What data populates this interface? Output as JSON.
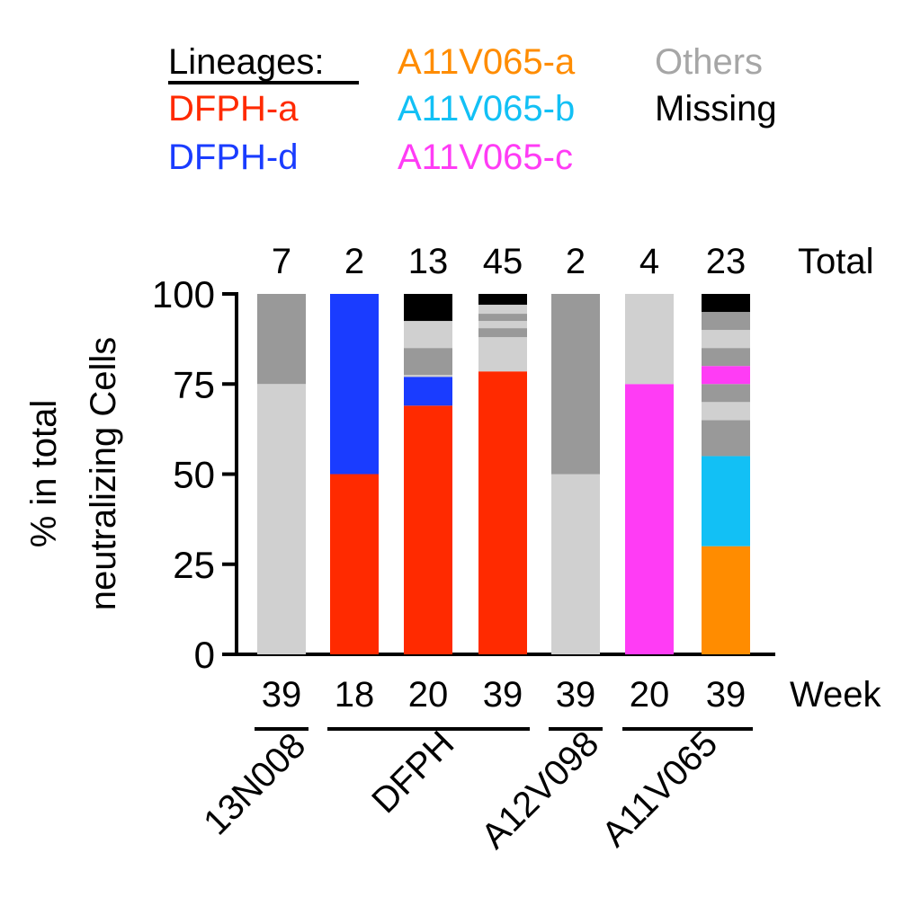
{
  "chart_data": {
    "type": "bar",
    "stacked": true,
    "ylabel": [
      "% in total",
      "neutralizing Cells"
    ],
    "ylim": [
      0,
      100
    ],
    "yticks": [
      0,
      25,
      50,
      75,
      100
    ],
    "legend": {
      "title": "Lineages:",
      "position": "top",
      "entries": [
        {
          "name": "DFPH-a",
          "color": "#ff2a00"
        },
        {
          "name": "DFPH-d",
          "color": "#1a3cff"
        },
        {
          "name": "A11V065-a",
          "color": "#ff8c00"
        },
        {
          "name": "A11V065-b",
          "color": "#12c0f5"
        },
        {
          "name": "A11V065-c",
          "color": "#ff3cf5"
        },
        {
          "name": "Others",
          "color": "#a6a6a6"
        },
        {
          "name": "Missing",
          "color": "#000000"
        }
      ]
    },
    "total_label": "Total",
    "week_label": "Week",
    "colors": {
      "light_gray": "#d0d0d0",
      "dark_gray": "#999999",
      "missing": "#000000"
    },
    "bars": [
      {
        "week": "39",
        "total": "7",
        "group": "13N008",
        "segments": [
          {
            "lineage": "Others",
            "shade": "light",
            "value": 75
          },
          {
            "lineage": "Others",
            "shade": "dark",
            "value": 25
          }
        ]
      },
      {
        "week": "18",
        "total": "2",
        "group": "DFPH",
        "segments": [
          {
            "lineage": "DFPH-a",
            "value": 50
          },
          {
            "lineage": "DFPH-d",
            "value": 50
          }
        ]
      },
      {
        "week": "20",
        "total": "13",
        "group": "DFPH",
        "segments": [
          {
            "lineage": "DFPH-a",
            "value": 69
          },
          {
            "lineage": "DFPH-d",
            "value": 8
          },
          {
            "lineage": "Others",
            "shade": "light",
            "value": 0.5
          },
          {
            "lineage": "Others",
            "shade": "dark",
            "value": 7.5
          },
          {
            "lineage": "Others",
            "shade": "light",
            "value": 7.5
          },
          {
            "lineage": "Missing",
            "value": 7.5
          }
        ]
      },
      {
        "week": "39",
        "total": "45",
        "group": "DFPH",
        "segments": [
          {
            "lineage": "DFPH-a",
            "value": 78.5
          },
          {
            "lineage": "Others",
            "shade": "light",
            "value": 9.5
          },
          {
            "lineage": "Others",
            "shade": "dark",
            "value": 2.5
          },
          {
            "lineage": "Others",
            "shade": "light",
            "value": 2
          },
          {
            "lineage": "Others",
            "shade": "dark",
            "value": 2
          },
          {
            "lineage": "Others",
            "shade": "light",
            "value": 2.5
          },
          {
            "lineage": "Missing",
            "value": 3
          }
        ]
      },
      {
        "week": "39",
        "total": "2",
        "group": "A12V098",
        "segments": [
          {
            "lineage": "Others",
            "shade": "light",
            "value": 50
          },
          {
            "lineage": "Others",
            "shade": "dark",
            "value": 50
          }
        ]
      },
      {
        "week": "20",
        "total": "4",
        "group": "A11V065",
        "segments": [
          {
            "lineage": "A11V065-c",
            "value": 75
          },
          {
            "lineage": "Others",
            "shade": "light",
            "value": 25
          }
        ]
      },
      {
        "week": "39",
        "total": "23",
        "group": "A11V065",
        "segments": [
          {
            "lineage": "A11V065-a",
            "value": 30
          },
          {
            "lineage": "A11V065-b",
            "value": 25
          },
          {
            "lineage": "Others",
            "shade": "dark",
            "value": 10
          },
          {
            "lineage": "Others",
            "shade": "light",
            "value": 5
          },
          {
            "lineage": "Others",
            "shade": "dark",
            "value": 5
          },
          {
            "lineage": "A11V065-c",
            "value": 5
          },
          {
            "lineage": "Others",
            "shade": "dark",
            "value": 5
          },
          {
            "lineage": "Others",
            "shade": "light",
            "value": 5
          },
          {
            "lineage": "Others",
            "shade": "dark",
            "value": 5
          },
          {
            "lineage": "Missing",
            "value": 5
          }
        ]
      }
    ],
    "groups": [
      {
        "label": "13N008",
        "bars": [
          0,
          0
        ]
      },
      {
        "label": "DFPH",
        "bars": [
          1,
          3
        ]
      },
      {
        "label": "A12V098",
        "bars": [
          4,
          4
        ]
      },
      {
        "label": "A11V065",
        "bars": [
          5,
          6
        ]
      }
    ]
  }
}
